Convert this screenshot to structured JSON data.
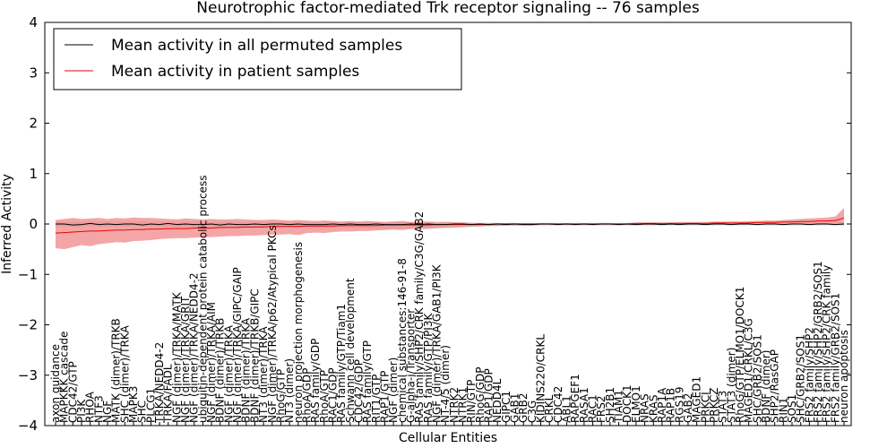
{
  "chart_data": {
    "type": "line",
    "title": "Neurotrophic factor-mediated Trk receptor signaling -- 76 samples",
    "xlabel": "Cellular Entities",
    "ylabel": "Inferred Activity",
    "ylim": [
      -4,
      4
    ],
    "yticks": [
      "−4",
      "−3",
      "−2",
      "−1",
      "0",
      "1",
      "2",
      "3",
      "4"
    ],
    "grid": false,
    "legend_position": "top-left",
    "legend": [
      "Mean activity in all permuted samples",
      "Mean activity in patient samples"
    ],
    "colors": {
      "permuted_line": "#000000",
      "patient_line": "#ee0000",
      "patient_band": "#f08080",
      "permuted_band": "#bbbbbb"
    },
    "categories": [
      "axon guidance",
      "MAPKKK cascade",
      "CDC42/GTP",
      "PI3K",
      "RHOA",
      "NTF3",
      "NGF",
      "MATK (dimer)/TRKB",
      "SHC (dimer)/TRKA",
      "MAPK3",
      "SHC",
      "PLCG1",
      "TRKA/NEDD4-2",
      "TRKA/FADL",
      "NGF (dimer)/TRKA/MATK",
      "NGF (dimer)/TRKA/GRIT",
      "NGF (dimer)/TRKA/NEDD4-2",
      "ubiquitin-dependent protein catabolic process",
      "NGF (dimer)/TRKA/AIM",
      "BDNF (dimer)/TRKB",
      "NGF (dimer)/TRKA",
      "NGF (dimer)/TRKA/GIPC/GAIP",
      "BDNF (dimer)/TRKA",
      "BDNF (dimer)/TRKB/GIPC",
      "NT3 (dimer)/TRKA",
      "NGF (dimer)/TRKA/p62/Atypical PKCs",
      "RhoG/GTP",
      "NT3 (dimer)",
      "neuron projection morphogenesis",
      "RhoA/GDP",
      "RAS family/GDP",
      "RhoA/GTP",
      "RAC1/GDP",
      "RAS family/GTP/Tiam1",
      "Schwann cell development",
      "CDC42/GDP",
      "RAS family/GTP",
      "RIT1/GTP",
      "RAP1/GTP",
      "NGF (dimer)",
      "chemical substances:146-91-8",
      "G-alpha-i/Transporter",
      "RAS family/SHP2/CRK family/C3G/GAB2",
      "RAS family/GTP/PI3K",
      "NGF (dimer)/TRKA/GAB1/PI3K",
      "NT-4/5 (dimer)",
      "NTRK2",
      "NTRK1",
      "RIN/GTP",
      "RhoG/GDP",
      "RAP1/GDP",
      "NEDD4L",
      "GIPC1",
      "GAB1",
      "GRB2",
      "C3G",
      "KIDINS220/CRKL",
      "CRKL",
      "CDC42",
      "ABL1",
      "RAPGEF1",
      "RASA1",
      "RAC1",
      "FRS2",
      "SH2B1",
      "TIAM1",
      "DOCK1",
      "ELMO1",
      "NRAS",
      "KRAS",
      "RAP1A",
      "RAP1B",
      "RGS19",
      "GAB2",
      "MAGED1",
      "PRKCI",
      "PRKCZ",
      "STAT3",
      "STAT3 (dimer)",
      "RhoG/GTP/ELMO1/DOCK1",
      "MAGED1/CRKL/C3G",
      "SHC/GRB2/SOS1",
      "BDNF (dimer)",
      "SHP2/RasGAP",
      "RIN1",
      "SOS1",
      "SHC/GRB2/SOS1",
      "FRS2 family/SHP2",
      "FRS2 family/SHP2/GRB2/SOS1",
      "FRS2 family/SHP2/CRK family",
      "FRS2 family/GRB2/SOS1",
      "neuron apoptosis"
    ],
    "series": [
      {
        "name": "Mean activity in all permuted samples",
        "values": [
          0.0,
          0.0,
          -0.02,
          -0.01,
          0.01,
          -0.01,
          0.0,
          -0.01,
          0.0,
          0.0,
          -0.02,
          0.0,
          -0.01,
          0.01,
          -0.01,
          0.0,
          -0.01,
          -0.01,
          0.0,
          -0.02,
          0.0,
          -0.01,
          -0.01,
          0.0,
          -0.01,
          0.0,
          0.0,
          -0.01,
          0.0,
          -0.01,
          -0.01,
          -0.01,
          0.0,
          -0.01,
          0.0,
          -0.01,
          -0.01,
          0.0,
          -0.01,
          -0.01,
          -0.01,
          0.0,
          -0.01,
          0.0,
          -0.01,
          -0.01,
          0.0,
          0.0,
          -0.01,
          0.0,
          -0.01,
          0.0,
          -0.01,
          0.0,
          -0.01,
          -0.01,
          0.0,
          0.0,
          -0.01,
          0.0,
          -0.01,
          0.0,
          -0.01,
          0.0,
          0.0,
          -0.01,
          0.0,
          -0.01,
          0.0,
          0.0,
          -0.01,
          0.0,
          -0.01,
          0.0,
          0.0,
          -0.01,
          0.0,
          0.0,
          -0.01,
          0.0,
          0.0,
          -0.01,
          0.0,
          0.0,
          -0.01,
          0.0,
          0.0,
          -0.01,
          0.0,
          0.0,
          -0.01,
          0.0
        ]
      },
      {
        "name": "Mean activity in patient samples",
        "values": [
          -0.18,
          -0.17,
          -0.16,
          -0.15,
          -0.14,
          -0.14,
          -0.13,
          -0.12,
          -0.12,
          -0.11,
          -0.11,
          -0.1,
          -0.1,
          -0.09,
          -0.09,
          -0.09,
          -0.08,
          -0.08,
          -0.08,
          -0.07,
          -0.07,
          -0.07,
          -0.06,
          -0.06,
          -0.06,
          -0.05,
          -0.05,
          -0.05,
          -0.05,
          -0.04,
          -0.04,
          -0.04,
          -0.04,
          -0.03,
          -0.03,
          -0.03,
          -0.03,
          -0.03,
          -0.02,
          -0.02,
          -0.02,
          -0.02,
          -0.02,
          -0.02,
          -0.01,
          -0.01,
          -0.01,
          -0.01,
          -0.01,
          -0.01,
          -0.01,
          0.0,
          0.0,
          0.0,
          0.0,
          0.0,
          0.0,
          0.0,
          0.0,
          0.0,
          0.0,
          0.0,
          0.0,
          0.0,
          0.0,
          0.0,
          0.0,
          0.01,
          0.01,
          0.01,
          0.01,
          0.01,
          0.01,
          0.01,
          0.01,
          0.01,
          0.02,
          0.02,
          0.02,
          0.02,
          0.02,
          0.03,
          0.03,
          0.03,
          0.04,
          0.04,
          0.05,
          0.05,
          0.06,
          0.06,
          0.07,
          0.12
        ]
      }
    ],
    "patient_band": {
      "upper": [
        0.08,
        0.1,
        0.12,
        0.1,
        0.11,
        0.12,
        0.1,
        0.12,
        0.11,
        0.13,
        0.12,
        0.12,
        0.11,
        0.1,
        0.09,
        0.11,
        0.1,
        0.09,
        0.1,
        0.09,
        0.09,
        0.1,
        0.09,
        0.08,
        0.08,
        0.09,
        0.08,
        0.07,
        0.08,
        0.07,
        0.06,
        0.07,
        0.06,
        0.05,
        0.06,
        0.05,
        0.06,
        0.05,
        0.04,
        0.05,
        0.06,
        0.04,
        0.05,
        0.04,
        0.03,
        0.04,
        0.03,
        0.03,
        0.02,
        0.02,
        0.02,
        0.02,
        0.02,
        0.02,
        0.02,
        0.02,
        0.02,
        0.02,
        0.02,
        0.02,
        0.02,
        0.02,
        0.02,
        0.02,
        0.02,
        0.02,
        0.02,
        0.03,
        0.03,
        0.03,
        0.03,
        0.03,
        0.04,
        0.04,
        0.04,
        0.04,
        0.05,
        0.05,
        0.05,
        0.05,
        0.06,
        0.06,
        0.07,
        0.07,
        0.08,
        0.09,
        0.1,
        0.11,
        0.12,
        0.13,
        0.15,
        0.32
      ],
      "lower": [
        -0.48,
        -0.5,
        -0.46,
        -0.42,
        -0.44,
        -0.4,
        -0.38,
        -0.36,
        -0.37,
        -0.34,
        -0.33,
        -0.32,
        -0.3,
        -0.29,
        -0.28,
        -0.28,
        -0.27,
        -0.26,
        -0.26,
        -0.25,
        -0.24,
        -0.24,
        -0.23,
        -0.23,
        -0.22,
        -0.21,
        -0.21,
        -0.2,
        -0.22,
        -0.18,
        -0.17,
        -0.18,
        -0.16,
        -0.15,
        -0.15,
        -0.14,
        -0.14,
        -0.13,
        -0.12,
        -0.11,
        -0.12,
        -0.1,
        -0.1,
        -0.09,
        -0.08,
        -0.07,
        -0.07,
        -0.06,
        -0.05,
        -0.05,
        -0.04,
        -0.04,
        -0.03,
        -0.03,
        -0.03,
        -0.03,
        -0.02,
        -0.02,
        -0.02,
        -0.02,
        -0.02,
        -0.02,
        -0.02,
        -0.02,
        -0.02,
        -0.02,
        -0.02,
        -0.02,
        -0.02,
        -0.02,
        -0.01,
        -0.01,
        -0.01,
        -0.01,
        -0.01,
        -0.01,
        -0.01,
        -0.01,
        -0.01,
        -0.01,
        -0.01,
        -0.01,
        -0.01,
        -0.01,
        -0.01,
        -0.01,
        -0.01,
        -0.01,
        -0.01,
        -0.01,
        -0.01,
        -0.02
      ]
    },
    "permuted_band": {
      "upper": [
        0.05,
        0.05,
        0.05,
        0.04,
        0.05,
        0.04,
        0.05,
        0.04,
        0.05,
        0.04,
        0.05,
        0.04,
        0.05,
        0.04,
        0.04,
        0.05,
        0.04,
        0.05,
        0.04,
        0.04,
        0.05,
        0.04,
        0.04,
        0.05,
        0.04,
        0.04,
        0.05,
        0.04,
        0.05,
        0.04,
        0.04,
        0.05,
        0.04,
        0.04,
        0.05,
        0.04,
        0.04,
        0.05,
        0.04,
        0.05,
        0.05,
        0.04,
        0.05,
        0.06,
        0.05,
        0.05,
        0.04,
        0.03,
        0.03,
        0.02,
        0.02,
        0.02,
        0.02,
        0.02,
        0.02,
        0.02,
        0.02,
        0.02,
        0.02,
        0.02,
        0.02,
        0.02,
        0.02,
        0.02,
        0.02,
        0.02,
        0.02,
        0.02,
        0.02,
        0.02,
        0.02,
        0.02,
        0.02,
        0.02,
        0.02,
        0.02,
        0.02,
        0.02,
        0.02,
        0.02,
        0.02,
        0.02,
        0.02,
        0.02,
        0.02,
        0.02,
        0.02,
        0.02,
        0.02,
        0.02,
        0.03,
        0.03
      ],
      "lower": [
        -0.05,
        -0.05,
        -0.06,
        -0.05,
        -0.05,
        -0.06,
        -0.05,
        -0.05,
        -0.06,
        -0.05,
        -0.06,
        -0.05,
        -0.06,
        -0.05,
        -0.06,
        -0.05,
        -0.06,
        -0.05,
        -0.06,
        -0.06,
        -0.05,
        -0.06,
        -0.06,
        -0.05,
        -0.06,
        -0.06,
        -0.05,
        -0.06,
        -0.06,
        -0.06,
        -0.06,
        -0.06,
        -0.07,
        -0.07,
        -0.08,
        -0.08,
        -0.09,
        -0.09,
        -0.1,
        -0.1,
        -0.1,
        -0.09,
        -0.1,
        -0.1,
        -0.09,
        -0.09,
        -0.08,
        -0.07,
        -0.06,
        -0.05,
        -0.04,
        -0.04,
        -0.03,
        -0.03,
        -0.03,
        -0.03,
        -0.03,
        -0.03,
        -0.03,
        -0.03,
        -0.03,
        -0.03,
        -0.03,
        -0.03,
        -0.03,
        -0.03,
        -0.03,
        -0.03,
        -0.03,
        -0.03,
        -0.03,
        -0.03,
        -0.03,
        -0.03,
        -0.03,
        -0.03,
        -0.03,
        -0.03,
        -0.03,
        -0.03,
        -0.03,
        -0.03,
        -0.03,
        -0.03,
        -0.03,
        -0.03,
        -0.03,
        -0.03,
        -0.03,
        -0.03,
        -0.03,
        -0.03
      ]
    }
  }
}
